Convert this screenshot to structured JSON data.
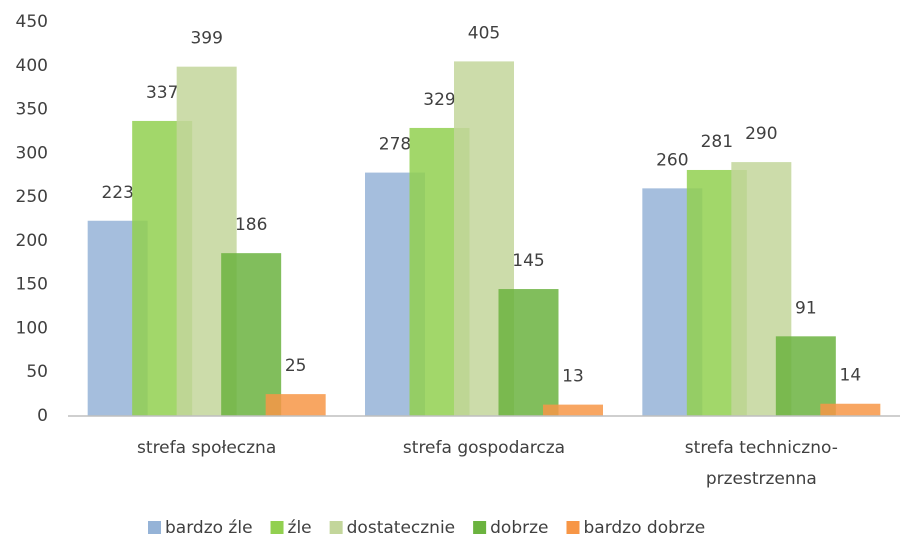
{
  "chart_data": {
    "type": "bar",
    "categories": [
      "strefa społeczna",
      "strefa gospodarcza",
      "strefa techniczno-przestrzenna"
    ],
    "series": [
      {
        "name": "bardzo źle",
        "color": "#95b3d7",
        "values": [
          223,
          278,
          260
        ]
      },
      {
        "name": "źle",
        "color": "#92d050",
        "values": [
          337,
          329,
          281
        ]
      },
      {
        "name": "dostatecznie",
        "color": "#c3d69b",
        "values": [
          399,
          405,
          290
        ]
      },
      {
        "name": "dobrze",
        "color": "#6bb33f",
        "values": [
          186,
          145,
          91
        ]
      },
      {
        "name": "bardzo dobrze",
        "color": "#f79646",
        "values": [
          25,
          13,
          14
        ]
      }
    ],
    "ylim": [
      0,
      450
    ],
    "yticks": [
      0,
      50,
      100,
      150,
      200,
      250,
      300,
      350,
      400,
      450
    ],
    "grid": false,
    "legend": "bottom"
  }
}
